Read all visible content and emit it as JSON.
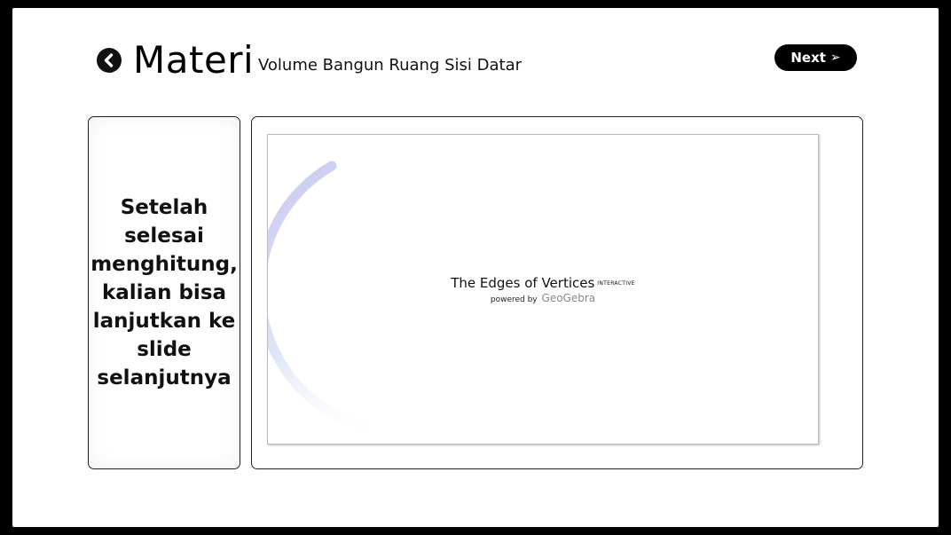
{
  "header": {
    "title": "Materi",
    "subtitle": "Volume Bangun Ruang Sisi Datar",
    "back_icon": "chevron-left-circle-icon",
    "next_label": "Next",
    "next_icon": "arrow-right-icon"
  },
  "left_panel": {
    "text": "Setelah\nselesai\nmenghitung,\nkalian bisa\nlanjutkan ke\nslide\nselanjutnya"
  },
  "embed": {
    "title": "The Edges of Vertices",
    "badge": "INTERACTIVE",
    "powered_by": "powered by",
    "brand": "GeoGebra",
    "spinner_color": "#c8c8f0"
  }
}
